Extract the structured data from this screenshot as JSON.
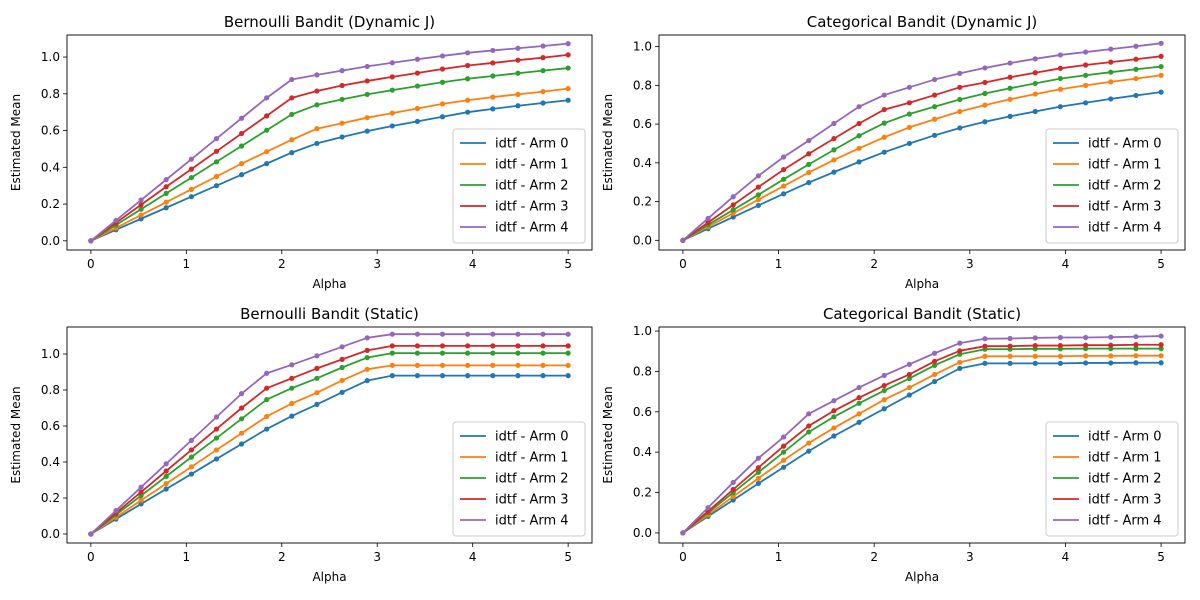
{
  "figure": {
    "colors": [
      "#1f77b4",
      "#ff7f0e",
      "#2ca02c",
      "#d62728",
      "#9467bd"
    ]
  },
  "chart_data": [
    {
      "type": "line",
      "title": "Bernoulli Bandit (Dynamic J)",
      "xlabel": "Alpha",
      "ylabel": "Estimated Mean",
      "xlim": [
        -0.25,
        5.25
      ],
      "ylim": [
        -0.05,
        1.12
      ],
      "xticks": [
        0,
        1,
        2,
        3,
        4,
        5
      ],
      "xtick_labels": [
        "0",
        "1",
        "2",
        "3",
        "4",
        "5"
      ],
      "yticks": [
        0.0,
        0.2,
        0.4,
        0.6,
        0.8,
        1.0
      ],
      "ytick_labels": [
        "0.0",
        "0.2",
        "0.4",
        "0.6",
        "0.8",
        "1.0"
      ],
      "grid": false,
      "legend_position": "lower-right",
      "x": [
        0,
        0.263,
        0.526,
        0.789,
        1.053,
        1.316,
        1.579,
        1.842,
        2.105,
        2.368,
        2.632,
        2.895,
        3.158,
        3.421,
        3.684,
        3.947,
        4.211,
        4.474,
        4.737,
        5.0
      ],
      "series": [
        {
          "name": "idtf - Arm 0",
          "values": [
            0.0,
            0.06,
            0.12,
            0.18,
            0.24,
            0.3,
            0.36,
            0.42,
            0.48,
            0.53,
            0.565,
            0.597,
            0.625,
            0.65,
            0.675,
            0.7,
            0.718,
            0.735,
            0.75,
            0.765
          ]
        },
        {
          "name": "idtf - Arm 1",
          "values": [
            0.0,
            0.07,
            0.14,
            0.21,
            0.28,
            0.35,
            0.42,
            0.485,
            0.55,
            0.61,
            0.64,
            0.67,
            0.695,
            0.72,
            0.745,
            0.765,
            0.782,
            0.797,
            0.812,
            0.828
          ]
        },
        {
          "name": "idtf - Arm 2",
          "values": [
            0.0,
            0.086,
            0.172,
            0.258,
            0.344,
            0.43,
            0.516,
            0.602,
            0.688,
            0.74,
            0.77,
            0.797,
            0.82,
            0.842,
            0.863,
            0.882,
            0.897,
            0.912,
            0.926,
            0.94
          ]
        },
        {
          "name": "idtf - Arm 3",
          "values": [
            0.0,
            0.098,
            0.196,
            0.294,
            0.39,
            0.487,
            0.584,
            0.68,
            0.778,
            0.815,
            0.845,
            0.87,
            0.892,
            0.913,
            0.935,
            0.954,
            0.968,
            0.983,
            0.997,
            1.012
          ]
        },
        {
          "name": "idtf - Arm 4",
          "values": [
            0.0,
            0.111,
            0.222,
            0.333,
            0.444,
            0.556,
            0.667,
            0.778,
            0.878,
            0.903,
            0.926,
            0.949,
            0.969,
            0.988,
            1.006,
            1.023,
            1.036,
            1.048,
            1.06,
            1.073
          ]
        }
      ]
    },
    {
      "type": "line",
      "title": "Categorical Bandit (Dynamic J)",
      "xlabel": "Alpha",
      "ylabel": "Estimated Mean",
      "xlim": [
        -0.25,
        5.25
      ],
      "ylim": [
        -0.05,
        1.06
      ],
      "xticks": [
        0,
        1,
        2,
        3,
        4,
        5
      ],
      "xtick_labels": [
        "0",
        "1",
        "2",
        "3",
        "4",
        "5"
      ],
      "yticks": [
        0.0,
        0.2,
        0.4,
        0.6,
        0.8,
        1.0
      ],
      "ytick_labels": [
        "0.0",
        "0.2",
        "0.4",
        "0.6",
        "0.8",
        "1.0"
      ],
      "grid": false,
      "legend_position": "lower-right",
      "x": [
        0,
        0.263,
        0.526,
        0.789,
        1.053,
        1.316,
        1.579,
        1.842,
        2.105,
        2.368,
        2.632,
        2.895,
        3.158,
        3.421,
        3.684,
        3.947,
        4.211,
        4.474,
        4.737,
        5.0
      ],
      "series": [
        {
          "name": "idtf - Arm 0",
          "values": [
            0.0,
            0.06,
            0.12,
            0.18,
            0.24,
            0.298,
            0.352,
            0.405,
            0.455,
            0.5,
            0.542,
            0.58,
            0.612,
            0.64,
            0.665,
            0.69,
            0.71,
            0.73,
            0.748,
            0.765
          ]
        },
        {
          "name": "idtf - Arm 1",
          "values": [
            0.0,
            0.07,
            0.14,
            0.21,
            0.28,
            0.35,
            0.415,
            0.475,
            0.532,
            0.583,
            0.625,
            0.665,
            0.698,
            0.728,
            0.755,
            0.78,
            0.8,
            0.818,
            0.835,
            0.852
          ]
        },
        {
          "name": "idtf - Arm 2",
          "values": [
            0.0,
            0.08,
            0.157,
            0.235,
            0.315,
            0.392,
            0.467,
            0.54,
            0.605,
            0.652,
            0.69,
            0.727,
            0.758,
            0.785,
            0.81,
            0.835,
            0.852,
            0.868,
            0.883,
            0.897
          ]
        },
        {
          "name": "idtf - Arm 3",
          "values": [
            0.0,
            0.092,
            0.183,
            0.275,
            0.365,
            0.447,
            0.525,
            0.603,
            0.675,
            0.71,
            0.75,
            0.79,
            0.815,
            0.842,
            0.865,
            0.888,
            0.905,
            0.92,
            0.935,
            0.95
          ]
        },
        {
          "name": "idtf - Arm 4",
          "values": [
            0.0,
            0.113,
            0.225,
            0.333,
            0.43,
            0.515,
            0.603,
            0.69,
            0.75,
            0.79,
            0.83,
            0.862,
            0.89,
            0.915,
            0.937,
            0.957,
            0.972,
            0.987,
            1.002,
            1.017
          ]
        }
      ]
    },
    {
      "type": "line",
      "title": "Bernoulli Bandit (Static)",
      "xlabel": "Alpha",
      "ylabel": "Estimated Mean",
      "xlim": [
        -0.25,
        5.25
      ],
      "ylim": [
        -0.05,
        1.15
      ],
      "xticks": [
        0,
        1,
        2,
        3,
        4,
        5
      ],
      "xtick_labels": [
        "0",
        "1",
        "2",
        "3",
        "4",
        "5"
      ],
      "yticks": [
        0.0,
        0.2,
        0.4,
        0.6,
        0.8,
        1.0
      ],
      "ytick_labels": [
        "0.0",
        "0.2",
        "0.4",
        "0.6",
        "0.8",
        "1.0"
      ],
      "grid": false,
      "legend_position": "lower-right",
      "x": [
        0,
        0.263,
        0.526,
        0.789,
        1.053,
        1.316,
        1.579,
        1.842,
        2.105,
        2.368,
        2.632,
        2.895,
        3.158,
        3.421,
        3.684,
        3.947,
        4.211,
        4.474,
        4.737,
        5.0
      ],
      "series": [
        {
          "name": "idtf - Arm 0",
          "values": [
            0.0,
            0.083,
            0.167,
            0.25,
            0.333,
            0.417,
            0.5,
            0.583,
            0.655,
            0.72,
            0.787,
            0.852,
            0.88,
            0.88,
            0.88,
            0.88,
            0.88,
            0.88,
            0.88,
            0.88
          ]
        },
        {
          "name": "idtf - Arm 1",
          "values": [
            0.0,
            0.093,
            0.187,
            0.28,
            0.373,
            0.467,
            0.56,
            0.653,
            0.725,
            0.785,
            0.853,
            0.915,
            0.937,
            0.937,
            0.937,
            0.937,
            0.937,
            0.937,
            0.937,
            0.937
          ]
        },
        {
          "name": "idtf - Arm 2",
          "values": [
            0.0,
            0.107,
            0.213,
            0.32,
            0.427,
            0.533,
            0.64,
            0.747,
            0.81,
            0.865,
            0.925,
            0.98,
            1.005,
            1.005,
            1.005,
            1.005,
            1.005,
            1.005,
            1.005,
            1.005
          ]
        },
        {
          "name": "idtf - Arm 3",
          "values": [
            0.0,
            0.117,
            0.233,
            0.35,
            0.467,
            0.583,
            0.7,
            0.81,
            0.865,
            0.92,
            0.97,
            1.02,
            1.045,
            1.045,
            1.045,
            1.045,
            1.045,
            1.045,
            1.045,
            1.045
          ]
        },
        {
          "name": "idtf - Arm 4",
          "values": [
            0.0,
            0.13,
            0.26,
            0.39,
            0.52,
            0.65,
            0.78,
            0.893,
            0.94,
            0.99,
            1.04,
            1.09,
            1.11,
            1.11,
            1.11,
            1.11,
            1.11,
            1.11,
            1.11,
            1.11
          ]
        }
      ]
    },
    {
      "type": "line",
      "title": "Categorical Bandit (Static)",
      "xlabel": "Alpha",
      "ylabel": "Estimated Mean",
      "xlim": [
        -0.25,
        5.25
      ],
      "ylim": [
        -0.05,
        1.02
      ],
      "xticks": [
        0,
        1,
        2,
        3,
        4,
        5
      ],
      "xtick_labels": [
        "0",
        "1",
        "2",
        "3",
        "4",
        "5"
      ],
      "yticks": [
        0.0,
        0.2,
        0.4,
        0.6,
        0.8,
        1.0
      ],
      "ytick_labels": [
        "0.0",
        "0.2",
        "0.4",
        "0.6",
        "0.8",
        "1.0"
      ],
      "grid": false,
      "legend_position": "lower-right",
      "x": [
        0,
        0.263,
        0.526,
        0.789,
        1.053,
        1.316,
        1.579,
        1.842,
        2.105,
        2.368,
        2.632,
        2.895,
        3.158,
        3.421,
        3.684,
        3.947,
        4.211,
        4.474,
        4.737,
        5.0
      ],
      "series": [
        {
          "name": "idtf - Arm 0",
          "values": [
            0.0,
            0.082,
            0.163,
            0.245,
            0.325,
            0.405,
            0.48,
            0.548,
            0.615,
            0.683,
            0.75,
            0.815,
            0.84,
            0.84,
            0.84,
            0.84,
            0.842,
            0.842,
            0.843,
            0.843
          ]
        },
        {
          "name": "idtf - Arm 1",
          "values": [
            0.0,
            0.09,
            0.18,
            0.27,
            0.36,
            0.445,
            0.52,
            0.59,
            0.66,
            0.72,
            0.785,
            0.845,
            0.875,
            0.875,
            0.875,
            0.875,
            0.877,
            0.877,
            0.878,
            0.878
          ]
        },
        {
          "name": "idtf - Arm 2",
          "values": [
            0.0,
            0.1,
            0.2,
            0.3,
            0.4,
            0.5,
            0.575,
            0.642,
            0.705,
            0.765,
            0.83,
            0.885,
            0.91,
            0.91,
            0.912,
            0.912,
            0.913,
            0.913,
            0.913,
            0.913
          ]
        },
        {
          "name": "idtf - Arm 3",
          "values": [
            0.0,
            0.107,
            0.215,
            0.323,
            0.43,
            0.53,
            0.605,
            0.67,
            0.73,
            0.785,
            0.85,
            0.902,
            0.925,
            0.925,
            0.928,
            0.928,
            0.93,
            0.93,
            0.932,
            0.932
          ]
        },
        {
          "name": "idtf - Arm 4",
          "values": [
            0.0,
            0.125,
            0.25,
            0.37,
            0.475,
            0.59,
            0.655,
            0.72,
            0.78,
            0.835,
            0.89,
            0.94,
            0.962,
            0.963,
            0.966,
            0.968,
            0.968,
            0.97,
            0.972,
            0.975
          ]
        }
      ]
    }
  ]
}
